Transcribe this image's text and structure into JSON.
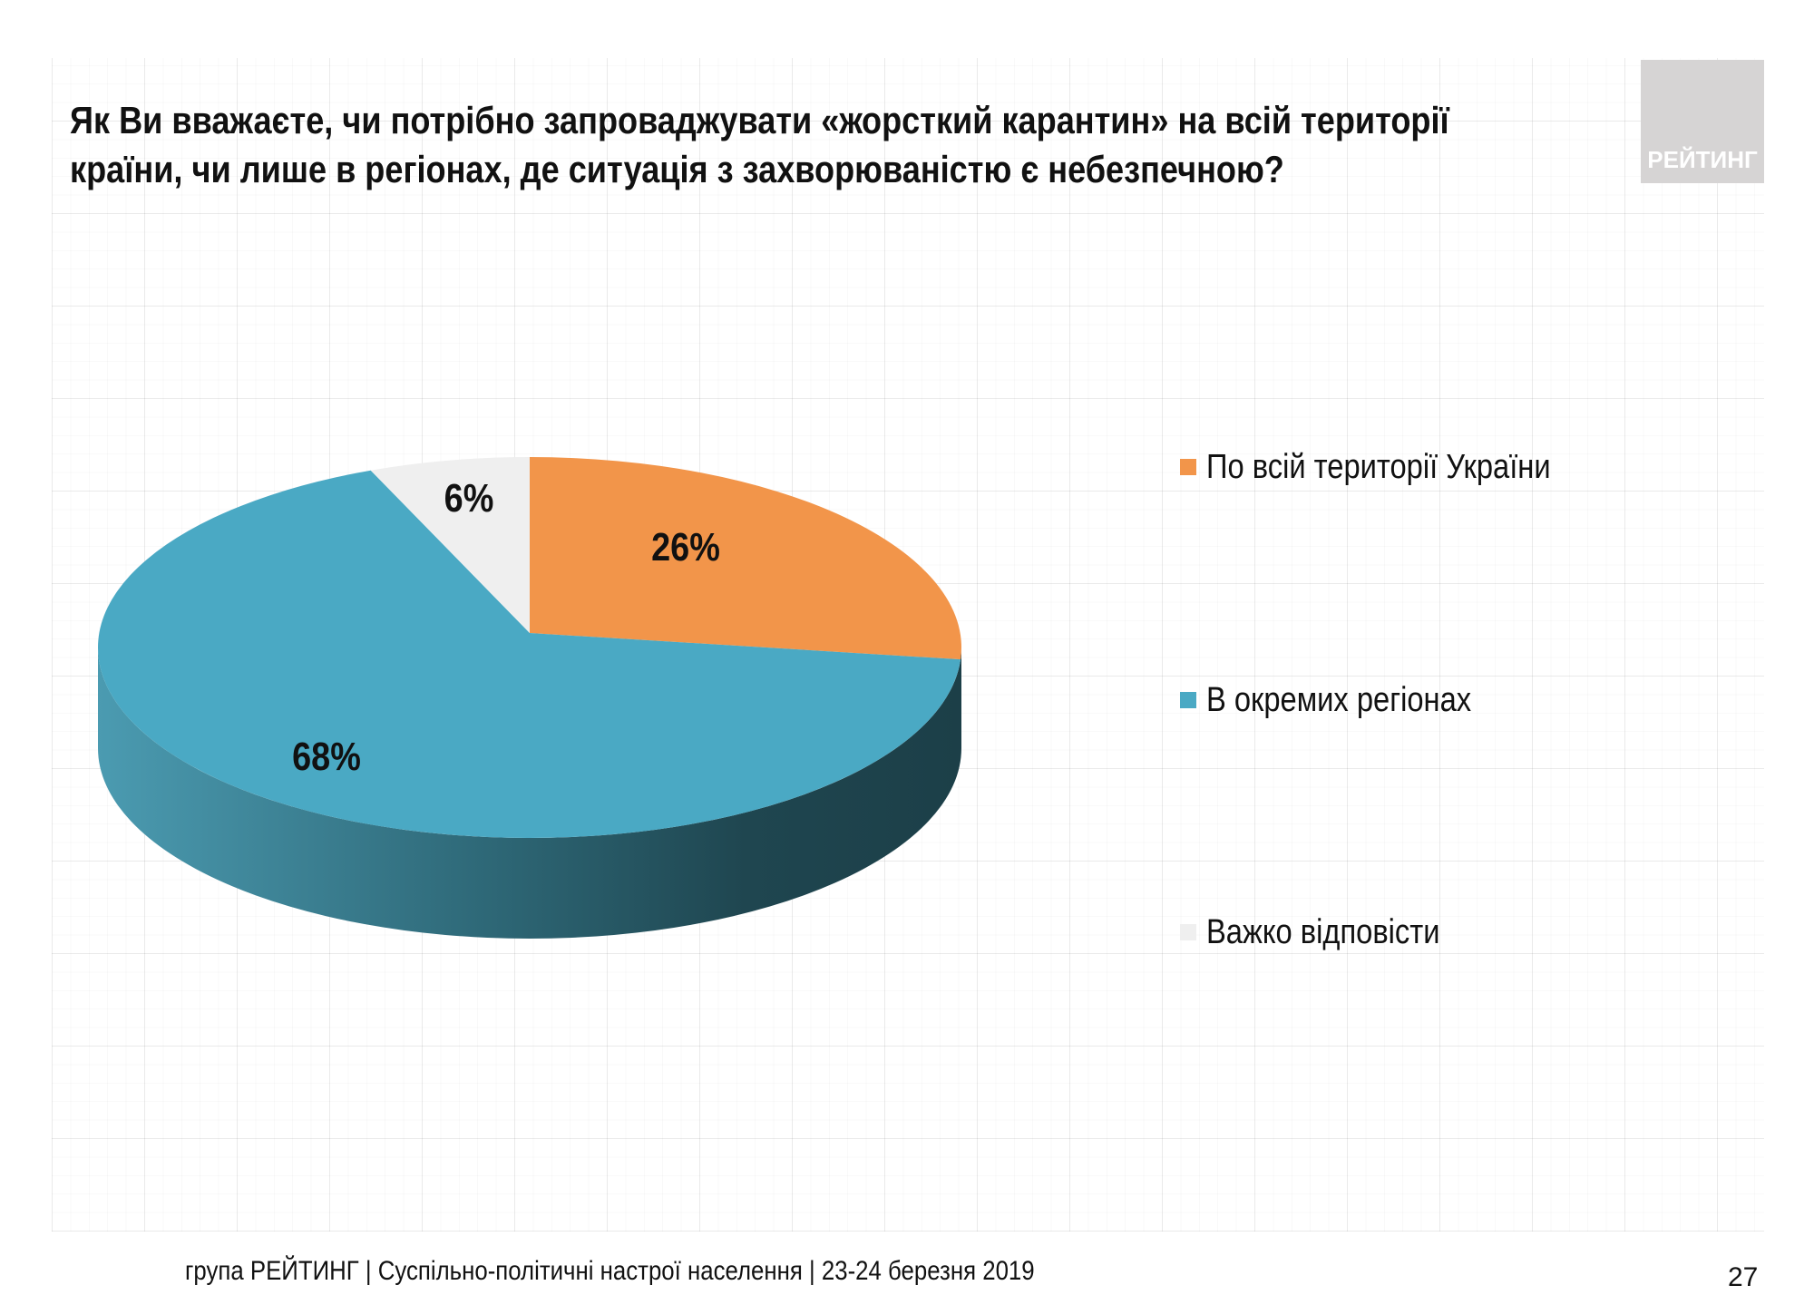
{
  "title": {
    "line1": "Як Ви вважаєте, чи потрібно запроваджувати «жорсткий карантин» на всій території",
    "line2": "країни, чи лише в регіонах, де ситуація з захворюваністю є небезпечною?"
  },
  "logo": {
    "text": "РЕЙТИНГ"
  },
  "chart_data": {
    "type": "pie",
    "style": "3d",
    "categories": [
      "По всій території України",
      "В окремих регіонах",
      "Важко відповісти"
    ],
    "values": [
      26,
      68,
      6
    ],
    "data_labels": [
      "26%",
      "68%",
      "6%"
    ],
    "colors": [
      "#f2954a",
      "#4aa9c4",
      "#efefef"
    ],
    "legend_position": "right"
  },
  "footer": {
    "text": "група РЕЙТИНГ | Суспільно-політичні настрої населення  | 23-24 березня 2019",
    "page_number": "27"
  }
}
